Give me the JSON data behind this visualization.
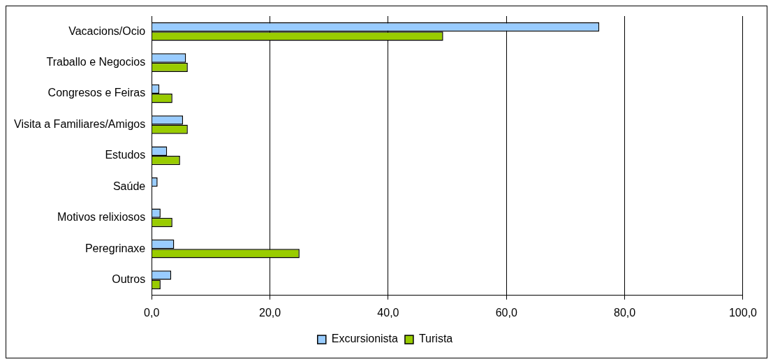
{
  "chart_data": {
    "type": "bar",
    "orientation": "horizontal",
    "categories": [
      "Vacacions/Ocio",
      "Traballo e Negocios",
      "Congresos e Feiras",
      "Visita a Familiares/Amigos",
      "Estudos",
      "Saúde",
      "Motivos relixiosos",
      "Peregrinaxe",
      "Outros"
    ],
    "series": [
      {
        "name": "Excursionista",
        "color": "#99ccff",
        "values": [
          75.7,
          5.8,
          1.3,
          5.3,
          2.6,
          1.0,
          1.5,
          3.8,
          3.3
        ]
      },
      {
        "name": "Turista",
        "color": "#99cc00",
        "values": [
          49.3,
          6.1,
          3.5,
          6.1,
          4.8,
          null,
          3.5,
          25.0,
          1.5
        ]
      }
    ],
    "xlim": [
      0,
      100
    ],
    "xticks": [
      {
        "value": 0,
        "label": "0,0"
      },
      {
        "value": 20,
        "label": "20,0"
      },
      {
        "value": 40,
        "label": "40,0"
      },
      {
        "value": 60,
        "label": "60,0"
      },
      {
        "value": 80,
        "label": "80,0"
      },
      {
        "value": 100,
        "label": "100,0"
      }
    ],
    "grid": "x",
    "legend": "bottom"
  }
}
